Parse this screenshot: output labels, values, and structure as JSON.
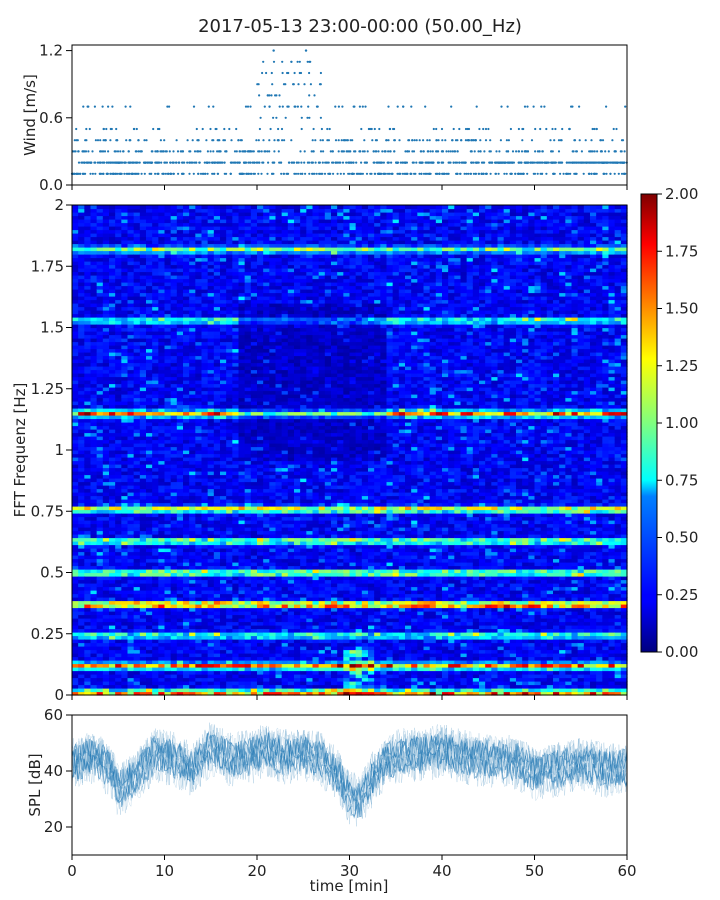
{
  "title": "2017-05-13 23:00-00:00 (50.00_Hz)",
  "chart_data": [
    {
      "type": "scatter",
      "ylabel": "Wind [m/s]",
      "xlim": [
        0,
        60
      ],
      "ylim": [
        0.0,
        1.25
      ],
      "yticks": [
        "0.0",
        "0.6",
        "1.2"
      ],
      "ytick_values": [
        0.0,
        0.6,
        1.2
      ],
      "color": "#1f77b4",
      "quantization_levels": [
        0.1,
        0.2,
        0.3,
        0.4,
        0.5,
        0.7,
        0.8,
        0.9,
        1.0,
        1.1,
        1.2
      ],
      "peaks": [
        {
          "x": 21.8,
          "y": 1.2
        },
        {
          "x": 25.3,
          "y": 1.2
        }
      ],
      "typical_range": [
        0.1,
        0.5
      ]
    },
    {
      "type": "heatmap",
      "ylabel": "FFT Frequenz [Hz]",
      "xlim": [
        0,
        60
      ],
      "ylim": [
        0,
        2
      ],
      "yticks": [
        "0",
        "0.25",
        "0.5",
        "0.75",
        "1",
        "1.25",
        "1.5",
        "1.75",
        "2"
      ],
      "ytick_values": [
        0,
        0.25,
        0.5,
        0.75,
        1,
        1.25,
        1.5,
        1.75,
        2
      ],
      "colormap": "jet",
      "colorbar": {
        "min": 0.0,
        "max": 2.0,
        "ticks": [
          "0.00",
          "0.25",
          "0.50",
          "0.75",
          "1.00",
          "1.25",
          "1.50",
          "1.75",
          "2.00"
        ],
        "tick_values": [
          0,
          0.25,
          0.5,
          0.75,
          1,
          1.25,
          1.5,
          1.75,
          2
        ]
      },
      "bands": [
        {
          "freq": 0.01,
          "intensity": 1.6
        },
        {
          "freq": 0.12,
          "intensity": 1.5
        },
        {
          "freq": 0.245,
          "intensity": 0.8
        },
        {
          "freq": 0.37,
          "intensity": 1.8
        },
        {
          "freq": 0.5,
          "intensity": 1.1
        },
        {
          "freq": 0.63,
          "intensity": 1.0
        },
        {
          "freq": 0.76,
          "intensity": 1.3
        },
        {
          "freq": 1.15,
          "intensity": 1.5
        },
        {
          "freq": 1.53,
          "intensity": 0.8
        },
        {
          "freq": 1.82,
          "intensity": 0.9
        }
      ]
    },
    {
      "type": "line",
      "ylabel": "SPL [dB]",
      "xlabel": "time [min]",
      "xlim": [
        0,
        60
      ],
      "ylim": [
        10,
        60
      ],
      "xticks": [
        "0",
        "10",
        "20",
        "30",
        "40",
        "50",
        "60"
      ],
      "xtick_values": [
        0,
        10,
        20,
        30,
        40,
        50,
        60
      ],
      "yticks": [
        "20",
        "40",
        "60"
      ],
      "ytick_values": [
        20,
        40,
        60
      ],
      "color": "#1f77b4",
      "mean_profile": [
        {
          "x": 0,
          "y": 42
        },
        {
          "x": 2,
          "y": 45
        },
        {
          "x": 4,
          "y": 41
        },
        {
          "x": 5,
          "y": 33
        },
        {
          "x": 7,
          "y": 38
        },
        {
          "x": 9,
          "y": 46
        },
        {
          "x": 11,
          "y": 44
        },
        {
          "x": 13,
          "y": 40
        },
        {
          "x": 15,
          "y": 48
        },
        {
          "x": 17,
          "y": 44
        },
        {
          "x": 19,
          "y": 45
        },
        {
          "x": 21,
          "y": 47
        },
        {
          "x": 23,
          "y": 45
        },
        {
          "x": 25,
          "y": 46
        },
        {
          "x": 27,
          "y": 44
        },
        {
          "x": 29,
          "y": 37
        },
        {
          "x": 30,
          "y": 30
        },
        {
          "x": 31,
          "y": 29
        },
        {
          "x": 32,
          "y": 34
        },
        {
          "x": 33,
          "y": 40
        },
        {
          "x": 35,
          "y": 45
        },
        {
          "x": 38,
          "y": 46
        },
        {
          "x": 40,
          "y": 47
        },
        {
          "x": 42,
          "y": 45
        },
        {
          "x": 44,
          "y": 44
        },
        {
          "x": 46,
          "y": 44
        },
        {
          "x": 48,
          "y": 43
        },
        {
          "x": 50,
          "y": 39
        },
        {
          "x": 52,
          "y": 40
        },
        {
          "x": 54,
          "y": 42
        },
        {
          "x": 56,
          "y": 42
        },
        {
          "x": 58,
          "y": 40
        },
        {
          "x": 60,
          "y": 41
        }
      ],
      "spread_db": 7
    }
  ]
}
